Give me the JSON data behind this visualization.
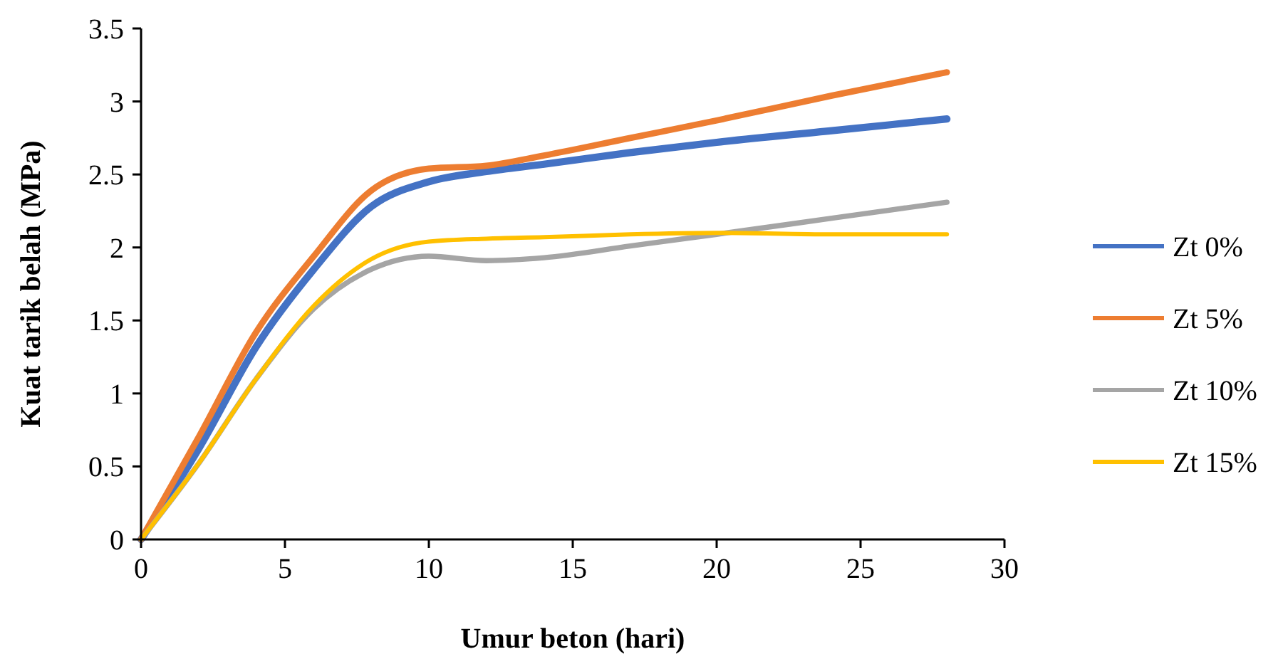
{
  "chart_data": {
    "type": "line",
    "xlabel": "Umur beton (hari)",
    "ylabel": "Kuat tarik belah (MPa)",
    "x": [
      0,
      2,
      4,
      6,
      8,
      10,
      12,
      14,
      17,
      20,
      24,
      28
    ],
    "series": [
      {
        "name": "Zt 0%",
        "color": "#4472c4",
        "values": [
          0,
          0.62,
          1.32,
          1.85,
          2.28,
          2.45,
          2.52,
          2.57,
          2.65,
          2.72,
          2.8,
          2.88
        ]
      },
      {
        "name": "Zt 5%",
        "color": "#ed7d31",
        "values": [
          0,
          0.7,
          1.42,
          1.94,
          2.39,
          2.54,
          2.56,
          2.63,
          2.75,
          2.87,
          3.04,
          3.2
        ]
      },
      {
        "name": "Zt 10%",
        "color": "#a5a5a5",
        "values": [
          0,
          0.52,
          1.1,
          1.58,
          1.85,
          1.94,
          1.91,
          1.93,
          2.01,
          2.09,
          2.2,
          2.31
        ]
      },
      {
        "name": "Zt 15%",
        "color": "#ffc000",
        "values": [
          0,
          0.52,
          1.1,
          1.6,
          1.92,
          2.04,
          2.06,
          2.07,
          2.09,
          2.1,
          2.09,
          2.09
        ]
      }
    ],
    "xlim": [
      0,
      30
    ],
    "xticks": [
      0,
      5,
      10,
      15,
      20,
      25,
      30
    ],
    "ylim": [
      0,
      3.5
    ],
    "yticks": [
      0,
      0.5,
      1,
      1.5,
      2,
      2.5,
      3,
      3.5
    ],
    "grid": false,
    "legend": "right",
    "marker": "none",
    "line_style": "solid"
  }
}
